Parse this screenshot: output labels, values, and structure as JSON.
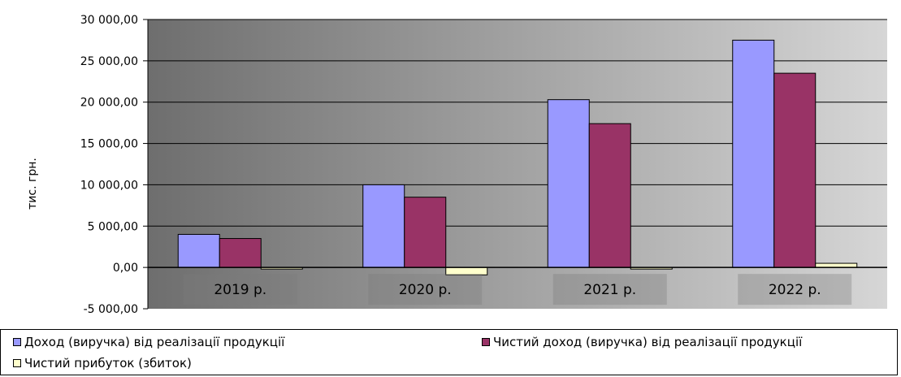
{
  "chart_data": {
    "type": "bar",
    "ylabel": "тис. грн.",
    "categories": [
      "2019 р.",
      "2020 р.",
      "2021 р.",
      "2022 р."
    ],
    "ylim": [
      -5000,
      30000
    ],
    "yticks": [
      30000,
      25000,
      20000,
      15000,
      10000,
      5000,
      0,
      -5000
    ],
    "ytick_labels": [
      "30 000,00",
      "25 000,00",
      "20 000,00",
      "15 000,00",
      "10 000,00",
      "5 000,00",
      "0,00",
      "-5 000,00"
    ],
    "grid": true,
    "legend_position": "bottom",
    "series": [
      {
        "name": "Доход (виручка) від реалізації продукції",
        "values": [
          4000,
          10000,
          20300,
          27500
        ],
        "color": "#9999ff"
      },
      {
        "name": "Чистий доход (виручка) від реалізації продукції",
        "values": [
          3500,
          8500,
          17400,
          23500
        ],
        "color": "#993366"
      },
      {
        "name": "Чистий прибуток (збиток)",
        "values": [
          -150,
          -900,
          -150,
          500
        ],
        "color": "#ffffcc"
      }
    ]
  }
}
